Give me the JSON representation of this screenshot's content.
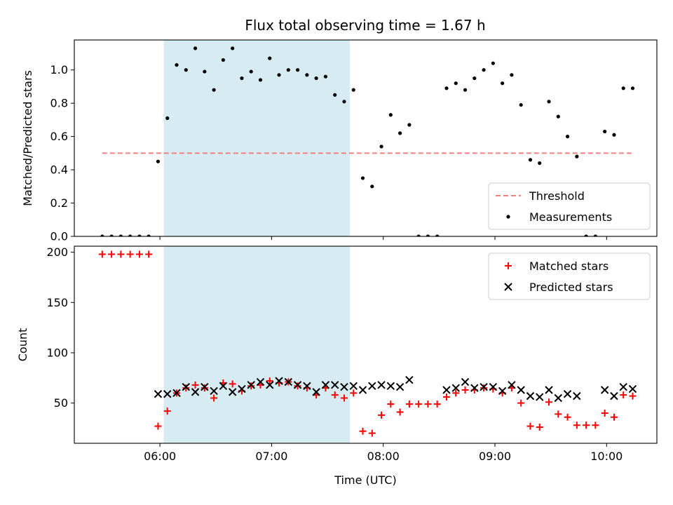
{
  "chart_data": [
    {
      "type": "scatter",
      "title": "Flux total observing time = 1.67 h",
      "ylabel": "Matched/Predicted stars",
      "xlabel": "",
      "xlim": [
        "05:14",
        "10:27"
      ],
      "ylim": [
        0,
        1.18
      ],
      "yticks": [
        0.0,
        0.2,
        0.4,
        0.6,
        0.8,
        1.0
      ],
      "yticklabels": [
        "0.0",
        "0.2",
        "0.4",
        "0.6",
        "0.8",
        "1.0"
      ],
      "shaded_span": {
        "start": "06:02",
        "end": "07:42",
        "color": "#add8e6"
      },
      "threshold": {
        "name": "Threshold",
        "value": 0.5,
        "x_start": "05:29",
        "x_end": "10:14",
        "color": "#f08080",
        "style": "dashed"
      },
      "legend": {
        "position": "lower right",
        "entries": [
          "Threshold",
          "Measurements"
        ]
      },
      "series": [
        {
          "name": "Measurements",
          "marker": "dot",
          "color": "#000000",
          "x": [
            "05:29",
            "05:34",
            "05:39",
            "05:44",
            "05:49",
            "05:54",
            "05:59",
            "06:04",
            "06:09",
            "06:14",
            "06:19",
            "06:24",
            "06:29",
            "06:34",
            "06:39",
            "06:44",
            "06:49",
            "06:54",
            "06:59",
            "07:04",
            "07:09",
            "07:14",
            "07:19",
            "07:24",
            "07:29",
            "07:34",
            "07:39",
            "07:44",
            "07:49",
            "07:54",
            "07:59",
            "08:04",
            "08:09",
            "08:14",
            "08:19",
            "08:24",
            "08:29",
            "08:34",
            "08:39",
            "08:44",
            "08:49",
            "08:54",
            "08:59",
            "09:04",
            "09:09",
            "09:14",
            "09:19",
            "09:24",
            "09:29",
            "09:34",
            "09:39",
            "09:44",
            "09:49",
            "09:54",
            "09:59",
            "10:04",
            "10:09",
            "10:14"
          ],
          "y": [
            0,
            0,
            0,
            0,
            0,
            0,
            0.45,
            0.71,
            1.03,
            1.0,
            1.13,
            0.99,
            0.88,
            1.06,
            1.13,
            0.95,
            0.99,
            0.94,
            1.07,
            0.97,
            1.0,
            1.0,
            0.97,
            0.95,
            0.96,
            0.85,
            0.81,
            0.88,
            0.35,
            0.3,
            0.54,
            0.73,
            0.62,
            0.67,
            0,
            0,
            0,
            0.89,
            0.92,
            0.88,
            0.95,
            1.0,
            1.04,
            0.92,
            0.97,
            0.79,
            0.46,
            0.44,
            0.81,
            0.72,
            0.6,
            0.48,
            0,
            0,
            0.63,
            0.61,
            0.89,
            0.89
          ]
        }
      ]
    },
    {
      "type": "scatter",
      "title": "",
      "xlabel": "Time (UTC)",
      "ylabel": "Count",
      "xlim": [
        "05:14",
        "10:27"
      ],
      "ylim": [
        10,
        206
      ],
      "xticks": [
        "06:00",
        "07:00",
        "08:00",
        "09:00",
        "10:00"
      ],
      "yticks": [
        50,
        100,
        150,
        200
      ],
      "yticklabels": [
        "50",
        "100",
        "150",
        "200"
      ],
      "shaded_span": {
        "start": "06:02",
        "end": "07:42",
        "color": "#add8e6"
      },
      "legend": {
        "position": "upper right",
        "entries": [
          "Matched stars",
          "Predicted stars"
        ]
      },
      "series": [
        {
          "name": "Matched stars",
          "marker": "plus",
          "color": "#ff0000",
          "x": [
            "05:29",
            "05:34",
            "05:39",
            "05:44",
            "05:49",
            "05:54",
            "05:59",
            "06:04",
            "06:09",
            "06:14",
            "06:19",
            "06:24",
            "06:29",
            "06:34",
            "06:39",
            "06:44",
            "06:49",
            "06:54",
            "06:59",
            "07:04",
            "07:09",
            "07:14",
            "07:19",
            "07:24",
            "07:29",
            "07:34",
            "07:39",
            "07:44",
            "07:49",
            "07:54",
            "07:59",
            "08:04",
            "08:09",
            "08:14",
            "08:19",
            "08:24",
            "08:29",
            "08:34",
            "08:39",
            "08:44",
            "08:49",
            "08:54",
            "08:59",
            "09:04",
            "09:09",
            "09:14",
            "09:19",
            "09:24",
            "09:29",
            "09:34",
            "09:39",
            "09:44",
            "09:49",
            "09:54",
            "09:59",
            "10:04",
            "10:09",
            "10:14"
          ],
          "y": [
            198,
            198,
            198,
            198,
            198,
            198,
            27,
            42,
            60,
            65,
            68,
            65,
            55,
            70,
            69,
            62,
            67,
            68,
            72,
            70,
            71,
            67,
            65,
            58,
            65,
            58,
            55,
            60,
            22,
            20,
            38,
            49,
            41,
            49,
            49,
            49,
            49,
            56,
            60,
            63,
            63,
            65,
            64,
            60,
            65,
            50,
            27,
            26,
            51,
            39,
            36,
            28,
            28,
            28,
            40,
            36,
            58,
            57
          ]
        },
        {
          "name": "Predicted stars",
          "marker": "x",
          "color": "#000000",
          "x": [
            "05:59",
            "06:04",
            "06:09",
            "06:14",
            "06:19",
            "06:24",
            "06:29",
            "06:34",
            "06:39",
            "06:44",
            "06:49",
            "06:54",
            "06:59",
            "07:04",
            "07:09",
            "07:14",
            "07:19",
            "07:24",
            "07:29",
            "07:34",
            "07:39",
            "07:44",
            "07:49",
            "07:54",
            "07:59",
            "08:04",
            "08:09",
            "08:14",
            "08:34",
            "08:39",
            "08:44",
            "08:49",
            "08:54",
            "08:59",
            "09:04",
            "09:09",
            "09:14",
            "09:19",
            "09:24",
            "09:29",
            "09:34",
            "09:39",
            "09:44",
            "09:59",
            "10:04",
            "10:09",
            "10:14"
          ],
          "y": [
            59,
            59,
            60,
            66,
            61,
            66,
            62,
            67,
            61,
            64,
            68,
            71,
            68,
            72,
            71,
            68,
            67,
            61,
            68,
            68,
            66,
            67,
            63,
            67,
            68,
            67,
            66,
            73,
            63,
            65,
            71,
            65,
            66,
            66,
            62,
            68,
            63,
            57,
            56,
            63,
            55,
            59,
            57,
            63,
            57,
            66,
            64
          ]
        }
      ]
    }
  ]
}
